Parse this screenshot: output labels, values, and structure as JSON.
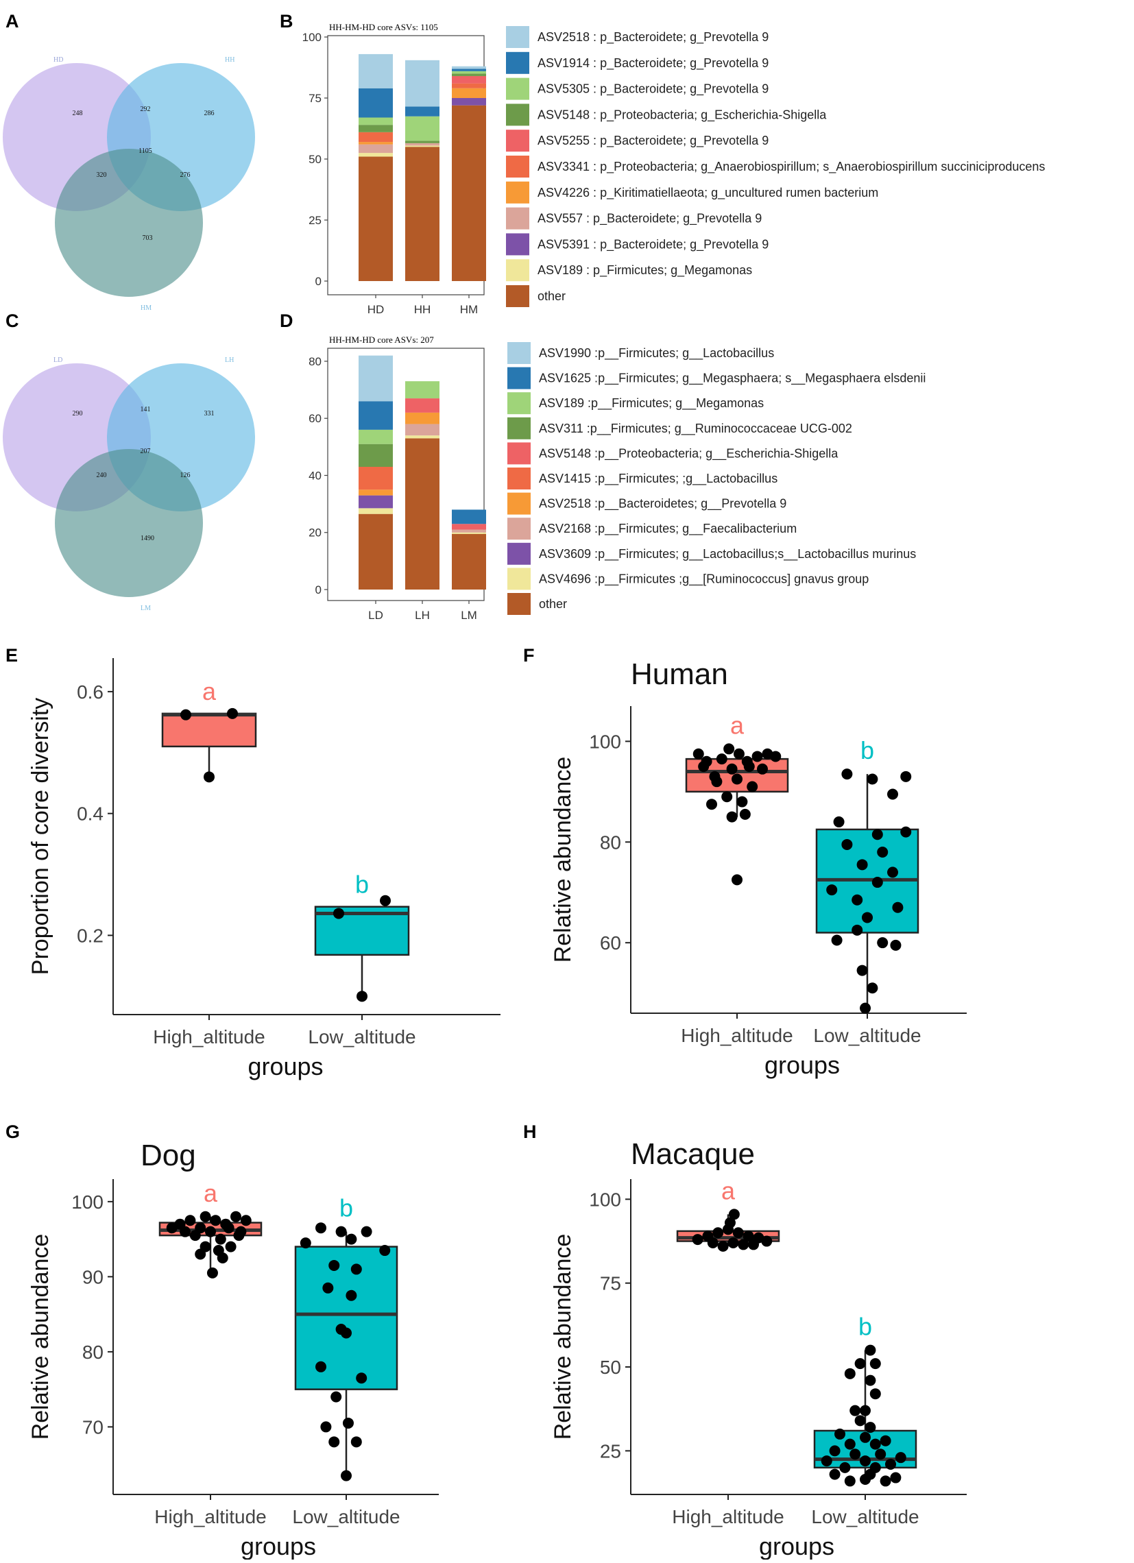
{
  "panel_letters": {
    "a": "A",
    "b": "B",
    "c": "C",
    "d": "D",
    "e": "E",
    "f": "F",
    "g": "G",
    "h": "H"
  },
  "chart_data": [
    {
      "id": "A",
      "type": "venn",
      "sets": [
        "HD",
        "HH",
        "HM"
      ],
      "regions": {
        "HD_only": 248,
        "HH_only": 286,
        "HM_only": 703,
        "HD_HH": 292,
        "HD_HM": 320,
        "HH_HM": 276,
        "all": 1105
      },
      "colors": {
        "HD": "#b9a3e8",
        "HH": "#5fb8e3",
        "HM": "#4f8f8c"
      }
    },
    {
      "id": "B",
      "type": "bar",
      "stacked": true,
      "title": "HH-HM-HD core ASVs: 1105",
      "categories": [
        "HD",
        "HH",
        "HM"
      ],
      "ylim": [
        0,
        100
      ],
      "yticks": [
        0,
        25,
        50,
        75,
        100
      ],
      "series": [
        {
          "name": "other",
          "label": "other",
          "color": "#b35a27",
          "values": [
            51,
            55,
            72
          ]
        },
        {
          "name": "ASV189",
          "label": "ASV189 :  p_Firmicutes; g_Megamonas",
          "color": "#f0e79a",
          "values": [
            1.5,
            0.5,
            0
          ]
        },
        {
          "name": "ASV5391",
          "label": "ASV5391 :  p_Bacteroidete; g_Prevotella 9",
          "color": "#7d52a8",
          "values": [
            0,
            0,
            3
          ]
        },
        {
          "name": "ASV557",
          "label": "ASV557 :  p_Bacteroidete; g_Prevotella 9",
          "color": "#dba59a",
          "values": [
            3.5,
            1,
            0
          ]
        },
        {
          "name": "ASV4226",
          "label": "ASV4226 :  p_Kiritimatiellaeota; g_uncultured rumen bacterium",
          "color": "#f79a36",
          "values": [
            1,
            0,
            4
          ]
        },
        {
          "name": "ASV3341",
          "label": "ASV3341 :  p_Proteobacteria; g_Anaerobiospirillum; s_Anaerobiospirillum succiniciproducens",
          "color": "#ef6a45",
          "values": [
            4,
            0,
            2
          ]
        },
        {
          "name": "ASV5255",
          "label": "ASV5255 :  p_Bacteroidete; g_Prevotella 9",
          "color": "#ee6265",
          "values": [
            0,
            0,
            3
          ]
        },
        {
          "name": "ASV5148",
          "label": "ASV5148 :  p_Proteobacteria; g_Escherichia-Shigella",
          "color": "#6d9b4a",
          "values": [
            3,
            1,
            1
          ]
        },
        {
          "name": "ASV5305",
          "label": "ASV5305 :  p_Bacteroidete; g_Prevotella 9",
          "color": "#9fd479",
          "values": [
            3,
            10,
            1
          ]
        },
        {
          "name": "ASV1914",
          "label": "ASV1914 :  p_Bacteroidete; g_Prevotella 9",
          "color": "#2878b1",
          "values": [
            12,
            4,
            1
          ]
        },
        {
          "name": "ASV2518",
          "label": "ASV2518 :  p_Bacteroidete; g_Prevotella 9",
          "color": "#a8cfe3",
          "values": [
            14,
            19,
            1
          ]
        }
      ]
    },
    {
      "id": "C",
      "type": "venn",
      "sets": [
        "LD",
        "LH",
        "LM"
      ],
      "regions": {
        "LD_only": 290,
        "LH_only": 331,
        "LM_only": 1490,
        "LD_LH": 141,
        "LD_LM": 240,
        "LH_LM": 126,
        "all": 207
      },
      "colors": {
        "LD": "#b9a3e8",
        "LH": "#5fb8e3",
        "LM": "#4f8f8c"
      }
    },
    {
      "id": "D",
      "type": "bar",
      "stacked": true,
      "title": "HH-HM-HD core ASVs: 207",
      "categories": [
        "LD",
        "LH",
        "LM"
      ],
      "ylim": [
        0,
        86
      ],
      "yticks": [
        0,
        20,
        40,
        60,
        80
      ],
      "series": [
        {
          "name": "other",
          "label": "other",
          "color": "#b35a27",
          "values": [
            26.5,
            53,
            19.5
          ]
        },
        {
          "name": "ASV4696",
          "label": "ASV4696 :p__Firmicutes ;g__[Ruminococcus] gnavus group",
          "color": "#f0e79a",
          "values": [
            2,
            1,
            0.5
          ]
        },
        {
          "name": "ASV3609",
          "label": "ASV3609 :p__Firmicutes; g__Lactobacillus;s__Lactobacillus murinus",
          "color": "#7d52a8",
          "values": [
            4.5,
            0,
            0
          ]
        },
        {
          "name": "ASV2168",
          "label": "ASV2168 :p__Firmicutes; g__Faecalibacterium",
          "color": "#dba59a",
          "values": [
            0,
            4,
            1
          ]
        },
        {
          "name": "ASV2518",
          "label": "ASV2518 :p__Bacteroidetes; g__Prevotella 9",
          "color": "#f79a36",
          "values": [
            2,
            4,
            0
          ]
        },
        {
          "name": "ASV1415",
          "label": "ASV1415 :p__Firmicutes; ;g__Lactobacillus",
          "color": "#ef6a45",
          "values": [
            8,
            0,
            0
          ]
        },
        {
          "name": "ASV5148",
          "label": "ASV5148 :p__Proteobacteria; g__Escherichia-Shigella",
          "color": "#ee6265",
          "values": [
            0,
            5,
            2
          ]
        },
        {
          "name": "ASV311",
          "label": "ASV311 :p__Firmicutes; g__Ruminococcaceae UCG-002",
          "color": "#6d9b4a",
          "values": [
            8,
            0,
            0
          ]
        },
        {
          "name": "ASV189",
          "label": "ASV189 :p__Firmicutes; g__Megamonas",
          "color": "#9fd479",
          "values": [
            5,
            6,
            0
          ]
        },
        {
          "name": "ASV1625",
          "label": "ASV1625 :p__Firmicutes; g__Megasphaera; s__Megasphaera elsdenii",
          "color": "#2878b1",
          "values": [
            10,
            0,
            5
          ]
        },
        {
          "name": "ASV1990",
          "label": "ASV1990 :p__Firmicutes; g__Lactobacillus",
          "color": "#a8cfe3",
          "values": [
            16,
            0,
            0
          ]
        }
      ]
    },
    {
      "id": "E",
      "type": "box",
      "title": "",
      "xlabel": "groups",
      "ylabel": "Proportion of core diversity",
      "categories": [
        "High_altitude",
        "Low_altitude"
      ],
      "ylim": [
        0.07,
        0.655
      ],
      "yticks": [
        0.2,
        0.4,
        0.6
      ],
      "ytick_labels": [
        "0.2",
        "0.4",
        "0.6"
      ],
      "colors": [
        "#f8766d",
        "#00bfc4"
      ],
      "sig_letters": [
        "a",
        "b"
      ],
      "boxes": [
        {
          "q1": 0.51,
          "median": 0.562,
          "q3": 0.564,
          "whisker_low": 0.46,
          "whisker_high": 0.564,
          "points": [
            [
              -0.25,
              0.562
            ],
            [
              0.25,
              0.564
            ],
            [
              0,
              0.46
            ]
          ]
        },
        {
          "q1": 0.168,
          "median": 0.236,
          "q3": 0.247,
          "whisker_low": 0.1,
          "whisker_high": 0.247,
          "points": [
            [
              -0.25,
              0.236
            ],
            [
              0.25,
              0.257
            ],
            [
              0,
              0.1
            ]
          ]
        }
      ]
    },
    {
      "id": "F",
      "type": "box",
      "title": "Human",
      "xlabel": "groups",
      "ylabel": "Relative abundance",
      "categories": [
        "High_altitude",
        "Low_altitude"
      ],
      "ylim": [
        46,
        107
      ],
      "yticks": [
        60,
        80,
        100
      ],
      "ytick_labels": [
        "60",
        "80",
        "100"
      ],
      "colors": [
        "#f8766d",
        "#00bfc4"
      ],
      "sig_letters": [
        "a",
        "b"
      ],
      "boxes": [
        {
          "q1": 90,
          "median": 94,
          "q3": 96.5,
          "whisker_low": 85,
          "whisker_high": 98.5,
          "points": [
            [
              -0.38,
              97.5
            ],
            [
              -0.3,
              96
            ],
            [
              -0.22,
              93
            ],
            [
              -0.15,
              96.5
            ],
            [
              -0.08,
              98.5
            ],
            [
              0.02,
              97.5
            ],
            [
              0.1,
              96
            ],
            [
              0.2,
              97
            ],
            [
              0.3,
              97.5
            ],
            [
              0.38,
              97
            ],
            [
              -0.33,
              95
            ],
            [
              -0.05,
              94.5
            ],
            [
              0.12,
              95
            ],
            [
              0.25,
              94.5
            ],
            [
              -0.2,
              92
            ],
            [
              0.0,
              92.5
            ],
            [
              0.15,
              91
            ],
            [
              -0.1,
              89
            ],
            [
              0.05,
              88
            ],
            [
              -0.25,
              87.5
            ],
            [
              0.08,
              85.5
            ],
            [
              -0.05,
              85
            ],
            [
              0.0,
              72.5
            ]
          ]
        },
        {
          "q1": 62,
          "median": 72.5,
          "q3": 82.5,
          "whisker_low": 47,
          "whisker_high": 93.5,
          "points": [
            [
              -0.2,
              93.5
            ],
            [
              0.05,
              92.5
            ],
            [
              0.38,
              93
            ],
            [
              0.25,
              89.5
            ],
            [
              -0.28,
              84
            ],
            [
              0.1,
              81.5
            ],
            [
              0.38,
              82
            ],
            [
              -0.2,
              79.5
            ],
            [
              0.15,
              78
            ],
            [
              -0.05,
              75.5
            ],
            [
              0.25,
              74
            ],
            [
              -0.35,
              70.5
            ],
            [
              0.1,
              72
            ],
            [
              -0.1,
              68.5
            ],
            [
              0.3,
              67
            ],
            [
              0.0,
              65
            ],
            [
              -0.1,
              62.5
            ],
            [
              -0.3,
              60.5
            ],
            [
              0.15,
              60
            ],
            [
              0.28,
              59.5
            ],
            [
              -0.05,
              54.5
            ],
            [
              0.05,
              51
            ],
            [
              -0.02,
              47
            ]
          ]
        }
      ]
    },
    {
      "id": "G",
      "type": "box",
      "title": "Dog",
      "xlabel": "groups",
      "ylabel": "Relative abundance",
      "categories": [
        "High_altitude",
        "Low_altitude"
      ],
      "ylim": [
        61,
        103
      ],
      "yticks": [
        70,
        80,
        90,
        100
      ],
      "ytick_labels": [
        "70",
        "80",
        "90",
        "100"
      ],
      "colors": [
        "#f8766d",
        "#00bfc4"
      ],
      "sig_letters": [
        "a",
        "b"
      ],
      "boxes": [
        {
          "q1": 95.5,
          "median": 96.2,
          "q3": 97.2,
          "whisker_low": 90.5,
          "whisker_high": 98,
          "points": [
            [
              -0.38,
              96.5
            ],
            [
              -0.3,
              97
            ],
            [
              -0.2,
              97.5
            ],
            [
              -0.1,
              96.5
            ],
            [
              -0.05,
              98
            ],
            [
              0.05,
              97.5
            ],
            [
              0.15,
              97
            ],
            [
              0.25,
              98
            ],
            [
              0.35,
              97.5
            ],
            [
              -0.25,
              96
            ],
            [
              0.0,
              96
            ],
            [
              0.18,
              96.5
            ],
            [
              0.3,
              96
            ],
            [
              -0.15,
              95.5
            ],
            [
              0.1,
              95
            ],
            [
              0.28,
              95.5
            ],
            [
              -0.05,
              94
            ],
            [
              0.08,
              93.5
            ],
            [
              0.2,
              94
            ],
            [
              -0.1,
              93
            ],
            [
              0.12,
              92.5
            ],
            [
              0.02,
              90.5
            ]
          ]
        },
        {
          "q1": 75,
          "median": 85,
          "q3": 94,
          "whisker_low": 63.5,
          "whisker_high": 96,
          "points": [
            [
              -0.4,
              94.5
            ],
            [
              -0.25,
              96.5
            ],
            [
              -0.05,
              96
            ],
            [
              0.05,
              95
            ],
            [
              0.2,
              96
            ],
            [
              0.38,
              93.5
            ],
            [
              -0.12,
              91.5
            ],
            [
              0.1,
              91
            ],
            [
              -0.18,
              88.5
            ],
            [
              0.05,
              87.5
            ],
            [
              -0.05,
              83
            ],
            [
              0.0,
              82.5
            ],
            [
              -0.25,
              78
            ],
            [
              0.15,
              76.5
            ],
            [
              -0.1,
              74
            ],
            [
              -0.2,
              70
            ],
            [
              0.02,
              70.5
            ],
            [
              -0.12,
              68
            ],
            [
              0.1,
              68
            ],
            [
              0.0,
              63.5
            ]
          ]
        }
      ]
    },
    {
      "id": "H",
      "type": "box",
      "title": "Macaque",
      "xlabel": "groups",
      "ylabel": "Relative abundance",
      "categories": [
        "High_altitude",
        "Low_altitude"
      ],
      "ylim": [
        12,
        106
      ],
      "yticks": [
        25,
        50,
        75,
        100
      ],
      "ytick_labels": [
        "25",
        "50",
        "75",
        "100"
      ],
      "colors": [
        "#f8766d",
        "#00bfc4"
      ],
      "sig_letters": [
        "a",
        "b"
      ],
      "boxes": [
        {
          "q1": 87.5,
          "median": 88.5,
          "q3": 90.5,
          "whisker_low": 86,
          "whisker_high": 95.5,
          "points": [
            [
              -0.3,
              88
            ],
            [
              -0.2,
              89
            ],
            [
              -0.1,
              90
            ],
            [
              0.0,
              91
            ],
            [
              0.1,
              90
            ],
            [
              0.2,
              89
            ],
            [
              0.3,
              88.5
            ],
            [
              0.38,
              87.5
            ],
            [
              -0.15,
              87
            ],
            [
              0.05,
              87
            ],
            [
              0.15,
              86.5
            ],
            [
              -0.05,
              86
            ],
            [
              0.25,
              86.5
            ],
            [
              0.02,
              93
            ],
            [
              0.06,
              95.5
            ]
          ]
        },
        {
          "q1": 20,
          "median": 22.5,
          "q3": 31,
          "whisker_low": 16,
          "whisker_high": 55,
          "points": [
            [
              0.05,
              55
            ],
            [
              -0.05,
              51
            ],
            [
              0.1,
              51
            ],
            [
              -0.15,
              48
            ],
            [
              0.05,
              46
            ],
            [
              0.1,
              42
            ],
            [
              -0.1,
              37
            ],
            [
              0.0,
              37
            ],
            [
              -0.05,
              34
            ],
            [
              0.05,
              32
            ],
            [
              -0.25,
              30
            ],
            [
              0.0,
              29
            ],
            [
              0.2,
              28
            ],
            [
              -0.15,
              27
            ],
            [
              0.1,
              27
            ],
            [
              -0.3,
              25
            ],
            [
              -0.1,
              24
            ],
            [
              0.15,
              24
            ],
            [
              0.35,
              23
            ],
            [
              -0.38,
              22
            ],
            [
              0.0,
              22
            ],
            [
              0.25,
              21
            ],
            [
              -0.2,
              20
            ],
            [
              0.1,
              20
            ],
            [
              -0.3,
              18
            ],
            [
              0.05,
              18
            ],
            [
              0.3,
              17
            ],
            [
              -0.15,
              16
            ],
            [
              0.2,
              16
            ],
            [
              0.0,
              16.5
            ]
          ]
        }
      ]
    }
  ]
}
